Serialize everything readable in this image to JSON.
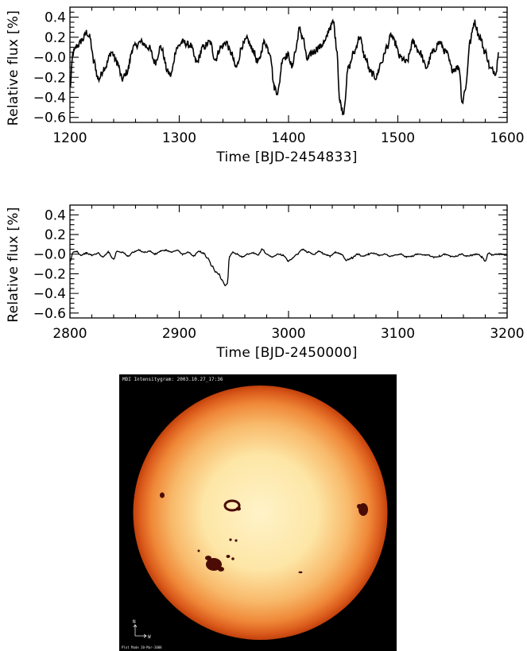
{
  "chart_data": [
    {
      "type": "line",
      "xlabel": "Time [BJD-2454833]",
      "ylabel": "Relative flux [%]",
      "xlim": [
        1200,
        1600
      ],
      "ylim": [
        -0.65,
        0.5
      ],
      "x_ticks": [
        1200,
        1300,
        1400,
        1500,
        1600
      ],
      "x_tick_labels": [
        "1200",
        "1300",
        "1400",
        "1500",
        "1600"
      ],
      "y_ticks": [
        0.4,
        0.2,
        0.0,
        -0.2,
        -0.4,
        -0.6
      ],
      "y_tick_labels": [
        "0.4",
        "0.2",
        "−0.0",
        "−0.2",
        "−0.4",
        "−0.6"
      ],
      "grid": false,
      "line_color": "#000000",
      "noise": 0.035,
      "series": [
        {
          "x": [
            1200,
            1203,
            1207,
            1212,
            1215,
            1218,
            1222,
            1226,
            1232,
            1238,
            1243,
            1248,
            1252,
            1258,
            1265,
            1272,
            1278,
            1283,
            1290,
            1292,
            1298,
            1303,
            1310,
            1316,
            1322,
            1328,
            1333,
            1338,
            1343,
            1347,
            1352,
            1358,
            1362,
            1367,
            1372,
            1378,
            1383,
            1387,
            1390,
            1395,
            1400,
            1403,
            1406,
            1410,
            1413,
            1417,
            1422,
            1428,
            1433,
            1438,
            1441,
            1444,
            1447,
            1450,
            1455,
            1460,
            1465,
            1470,
            1475,
            1480,
            1485,
            1490,
            1494,
            1497,
            1502,
            1508,
            1514,
            1520,
            1526,
            1532,
            1538,
            1544,
            1550,
            1556,
            1559,
            1562,
            1566,
            1570,
            1575,
            1580,
            1585,
            1590,
            1592
          ],
          "y": [
            -0.3,
            0.05,
            0.12,
            0.18,
            0.25,
            0.2,
            -0.05,
            -0.22,
            -0.1,
            0.05,
            -0.05,
            -0.22,
            -0.15,
            0.1,
            0.15,
            0.1,
            -0.05,
            0.1,
            -0.15,
            -0.18,
            0.1,
            0.15,
            0.12,
            -0.05,
            0.1,
            0.15,
            -0.02,
            0.1,
            0.15,
            0.05,
            -0.1,
            0.12,
            0.18,
            0.08,
            -0.05,
            0.15,
            0.05,
            -0.3,
            -0.35,
            0.0,
            0.02,
            -0.1,
            0.05,
            0.28,
            0.2,
            -0.02,
            0.05,
            0.1,
            0.15,
            0.3,
            0.35,
            0.1,
            -0.45,
            -0.55,
            -0.1,
            0.05,
            0.2,
            0.0,
            -0.15,
            -0.2,
            -0.05,
            0.1,
            0.22,
            0.15,
            0.0,
            -0.05,
            0.15,
            0.05,
            -0.1,
            0.05,
            0.15,
            0.05,
            -0.12,
            -0.1,
            -0.45,
            -0.3,
            0.15,
            0.35,
            0.2,
            0.05,
            -0.12,
            -0.15,
            0.05
          ]
        }
      ]
    },
    {
      "type": "line",
      "xlabel": "Time [BJD-2450000]",
      "ylabel": "Relative flux [%]",
      "xlim": [
        2800,
        3200
      ],
      "ylim": [
        -0.65,
        0.5
      ],
      "x_ticks": [
        2800,
        2900,
        3000,
        3100,
        3200
      ],
      "x_tick_labels": [
        "2800",
        "2900",
        "3000",
        "3100",
        "3200"
      ],
      "y_ticks": [
        0.4,
        0.2,
        0.0,
        -0.2,
        -0.4,
        -0.6
      ],
      "y_tick_labels": [
        "0.4",
        "0.2",
        "−0.0",
        "−0.2",
        "−0.4",
        "−0.6"
      ],
      "grid": false,
      "line_color": "#000000",
      "noise": 0.006,
      "series": [
        {
          "x": [
            2800,
            2803,
            2806,
            2810,
            2815,
            2820,
            2826,
            2830,
            2835,
            2840,
            2843,
            2848,
            2853,
            2858,
            2863,
            2868,
            2873,
            2878,
            2883,
            2888,
            2893,
            2898,
            2903,
            2908,
            2913,
            2918,
            2922,
            2926,
            2930,
            2933,
            2936,
            2939,
            2942,
            2944,
            2946,
            2949,
            2953,
            2958,
            2963,
            2968,
            2972,
            2976,
            2980,
            2985,
            2990,
            2995,
            3000,
            3004,
            3008,
            3013,
            3018,
            3023,
            3028,
            3033,
            3038,
            3043,
            3048,
            3053,
            3058,
            3063,
            3068,
            3073,
            3078,
            3083,
            3088,
            3093,
            3098,
            3103,
            3108,
            3113,
            3118,
            3123,
            3128,
            3133,
            3138,
            3143,
            3148,
            3153,
            3158,
            3163,
            3168,
            3173,
            3177,
            3180,
            3183,
            3186,
            3190,
            3195,
            3200
          ],
          "y": [
            -0.08,
            0.02,
            0.03,
            -0.01,
            0.01,
            -0.01,
            0.01,
            -0.03,
            0.02,
            -0.05,
            0.03,
            0.02,
            -0.02,
            0.02,
            0.04,
            0.02,
            0.03,
            0.0,
            0.03,
            0.04,
            0.02,
            0.04,
            0.0,
            0.02,
            -0.02,
            0.03,
            0.01,
            -0.04,
            -0.12,
            -0.18,
            -0.2,
            -0.26,
            -0.32,
            -0.3,
            -0.02,
            0.02,
            0.0,
            -0.03,
            0.0,
            0.01,
            -0.01,
            0.05,
            0.0,
            -0.03,
            0.0,
            -0.01,
            -0.07,
            -0.04,
            0.0,
            0.05,
            0.02,
            0.0,
            0.03,
            0.0,
            -0.02,
            0.02,
            0.0,
            -0.06,
            -0.04,
            0.0,
            -0.02,
            0.0,
            0.01,
            -0.01,
            0.0,
            -0.02,
            -0.01,
            0.0,
            -0.03,
            -0.02,
            0.0,
            -0.01,
            -0.01,
            -0.03,
            -0.02,
            0.0,
            -0.02,
            -0.02,
            0.0,
            -0.02,
            -0.01,
            0.0,
            -0.03,
            -0.07,
            0.01,
            -0.01,
            0.0,
            0.0,
            -0.01
          ]
        }
      ]
    }
  ],
  "sun_image": {
    "caption": "MDI Intensitygram: 2003.10.27_17:36",
    "footer": "Plot Made 20-Mar-2008",
    "north_label": "N",
    "west_label": "W",
    "limb_color": "#cf4a12",
    "center_color": "#fff1c4",
    "spot_color": "#4a0c05",
    "background": "#000000"
  }
}
